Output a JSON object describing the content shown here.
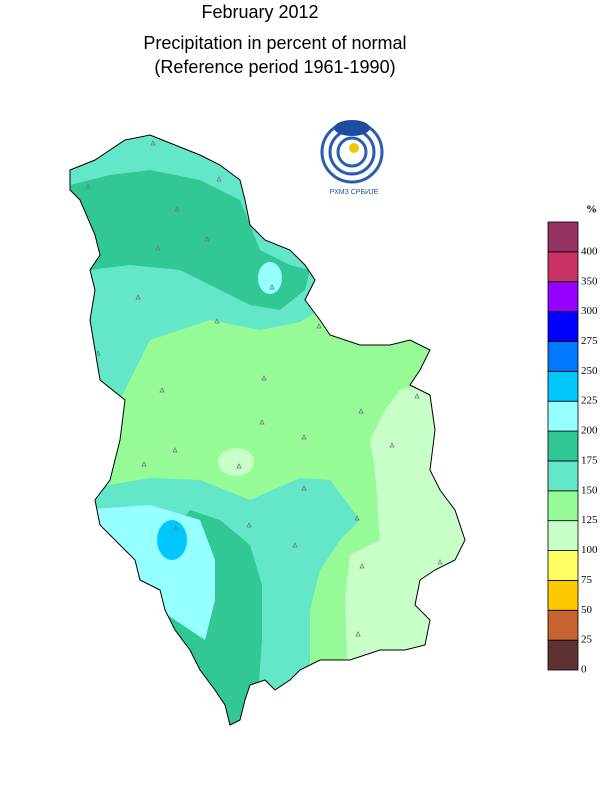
{
  "title": {
    "line1": "February 2012",
    "line2": "Precipitation in percent of normal",
    "line3": "(Reference period 1961-1990)"
  },
  "logo": {
    "text": "РХМЗ СРБИЈЕ"
  },
  "legend": {
    "unit": "%",
    "ticks": [
      0,
      25,
      50,
      75,
      100,
      125,
      150,
      175,
      200,
      225,
      250,
      275,
      300,
      350,
      400
    ],
    "colors": [
      "#5e3232",
      "#c86432",
      "#ffc800",
      "#ffff64",
      "#c8ffc8",
      "#96fa96",
      "#64e6c8",
      "#32c896",
      "#96ffff",
      "#00c8ff",
      "#0078ff",
      "#0000ff",
      "#9600ff",
      "#c83264",
      "#963264"
    ]
  }
}
